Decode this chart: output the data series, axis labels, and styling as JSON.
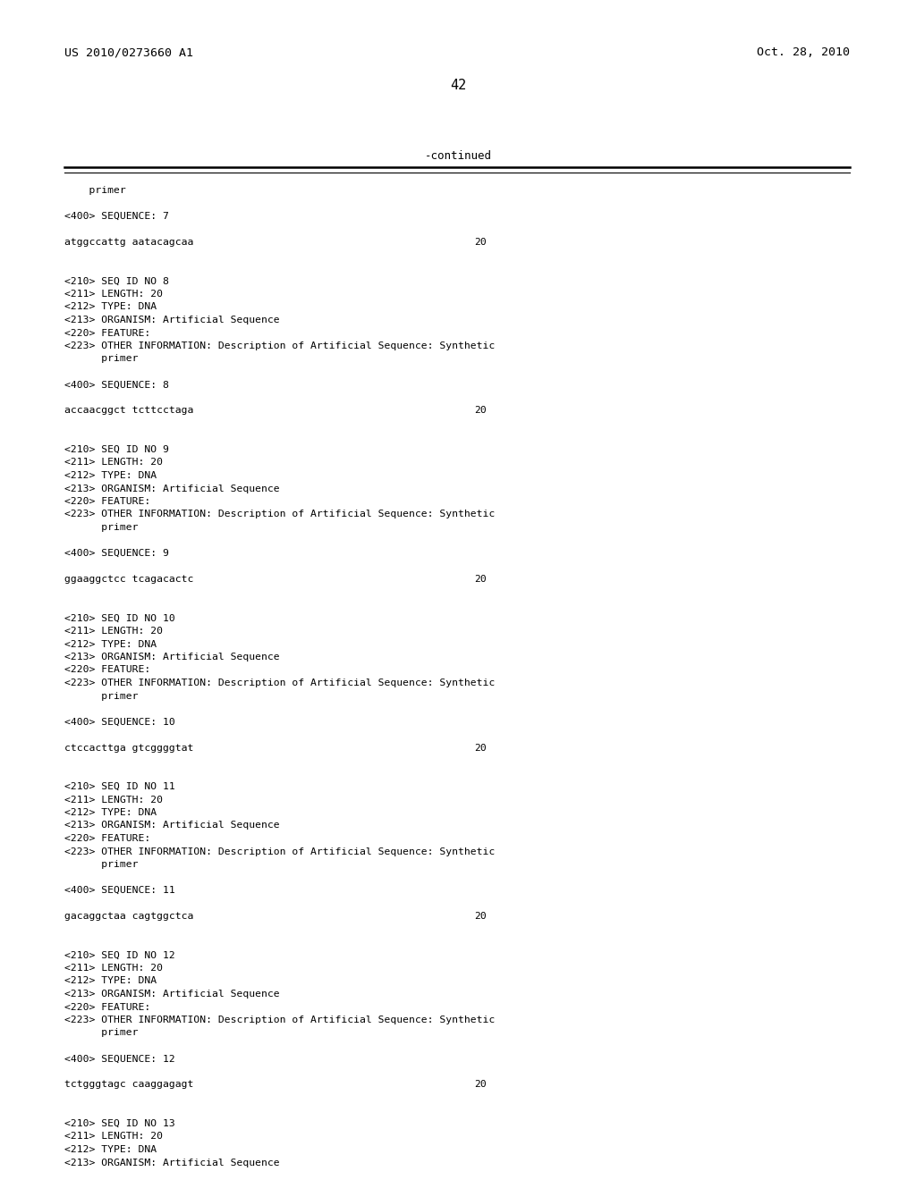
{
  "background_color": "#ffffff",
  "header_left": "US 2010/0273660 A1",
  "header_right": "Oct. 28, 2010",
  "page_number": "42",
  "continued_label": "-continued",
  "content_lines": [
    {
      "text": "    primer",
      "style": "mono"
    },
    {
      "text": "",
      "style": "mono"
    },
    {
      "text": "<400> SEQUENCE: 7",
      "style": "mono"
    },
    {
      "text": "",
      "style": "mono"
    },
    {
      "text": "atggccattg aatacagcaa",
      "style": "mono",
      "right_text": "20"
    },
    {
      "text": "",
      "style": "mono"
    },
    {
      "text": "",
      "style": "mono"
    },
    {
      "text": "<210> SEQ ID NO 8",
      "style": "mono"
    },
    {
      "text": "<211> LENGTH: 20",
      "style": "mono"
    },
    {
      "text": "<212> TYPE: DNA",
      "style": "mono"
    },
    {
      "text": "<213> ORGANISM: Artificial Sequence",
      "style": "mono"
    },
    {
      "text": "<220> FEATURE:",
      "style": "mono"
    },
    {
      "text": "<223> OTHER INFORMATION: Description of Artificial Sequence: Synthetic",
      "style": "mono"
    },
    {
      "text": "      primer",
      "style": "mono"
    },
    {
      "text": "",
      "style": "mono"
    },
    {
      "text": "<400> SEQUENCE: 8",
      "style": "mono"
    },
    {
      "text": "",
      "style": "mono"
    },
    {
      "text": "accaacggct tcttcctaga",
      "style": "mono",
      "right_text": "20"
    },
    {
      "text": "",
      "style": "mono"
    },
    {
      "text": "",
      "style": "mono"
    },
    {
      "text": "<210> SEQ ID NO 9",
      "style": "mono"
    },
    {
      "text": "<211> LENGTH: 20",
      "style": "mono"
    },
    {
      "text": "<212> TYPE: DNA",
      "style": "mono"
    },
    {
      "text": "<213> ORGANISM: Artificial Sequence",
      "style": "mono"
    },
    {
      "text": "<220> FEATURE:",
      "style": "mono"
    },
    {
      "text": "<223> OTHER INFORMATION: Description of Artificial Sequence: Synthetic",
      "style": "mono"
    },
    {
      "text": "      primer",
      "style": "mono"
    },
    {
      "text": "",
      "style": "mono"
    },
    {
      "text": "<400> SEQUENCE: 9",
      "style": "mono"
    },
    {
      "text": "",
      "style": "mono"
    },
    {
      "text": "ggaaggctcc tcagacactc",
      "style": "mono",
      "right_text": "20"
    },
    {
      "text": "",
      "style": "mono"
    },
    {
      "text": "",
      "style": "mono"
    },
    {
      "text": "<210> SEQ ID NO 10",
      "style": "mono"
    },
    {
      "text": "<211> LENGTH: 20",
      "style": "mono"
    },
    {
      "text": "<212> TYPE: DNA",
      "style": "mono"
    },
    {
      "text": "<213> ORGANISM: Artificial Sequence",
      "style": "mono"
    },
    {
      "text": "<220> FEATURE:",
      "style": "mono"
    },
    {
      "text": "<223> OTHER INFORMATION: Description of Artificial Sequence: Synthetic",
      "style": "mono"
    },
    {
      "text": "      primer",
      "style": "mono"
    },
    {
      "text": "",
      "style": "mono"
    },
    {
      "text": "<400> SEQUENCE: 10",
      "style": "mono"
    },
    {
      "text": "",
      "style": "mono"
    },
    {
      "text": "ctccacttga gtcggggtat",
      "style": "mono",
      "right_text": "20"
    },
    {
      "text": "",
      "style": "mono"
    },
    {
      "text": "",
      "style": "mono"
    },
    {
      "text": "<210> SEQ ID NO 11",
      "style": "mono"
    },
    {
      "text": "<211> LENGTH: 20",
      "style": "mono"
    },
    {
      "text": "<212> TYPE: DNA",
      "style": "mono"
    },
    {
      "text": "<213> ORGANISM: Artificial Sequence",
      "style": "mono"
    },
    {
      "text": "<220> FEATURE:",
      "style": "mono"
    },
    {
      "text": "<223> OTHER INFORMATION: Description of Artificial Sequence: Synthetic",
      "style": "mono"
    },
    {
      "text": "      primer",
      "style": "mono"
    },
    {
      "text": "",
      "style": "mono"
    },
    {
      "text": "<400> SEQUENCE: 11",
      "style": "mono"
    },
    {
      "text": "",
      "style": "mono"
    },
    {
      "text": "gacaggctaa cagtggctca",
      "style": "mono",
      "right_text": "20"
    },
    {
      "text": "",
      "style": "mono"
    },
    {
      "text": "",
      "style": "mono"
    },
    {
      "text": "<210> SEQ ID NO 12",
      "style": "mono"
    },
    {
      "text": "<211> LENGTH: 20",
      "style": "mono"
    },
    {
      "text": "<212> TYPE: DNA",
      "style": "mono"
    },
    {
      "text": "<213> ORGANISM: Artificial Sequence",
      "style": "mono"
    },
    {
      "text": "<220> FEATURE:",
      "style": "mono"
    },
    {
      "text": "<223> OTHER INFORMATION: Description of Artificial Sequence: Synthetic",
      "style": "mono"
    },
    {
      "text": "      primer",
      "style": "mono"
    },
    {
      "text": "",
      "style": "mono"
    },
    {
      "text": "<400> SEQUENCE: 12",
      "style": "mono"
    },
    {
      "text": "",
      "style": "mono"
    },
    {
      "text": "tctgggtagc caaggagagt",
      "style": "mono",
      "right_text": "20"
    },
    {
      "text": "",
      "style": "mono"
    },
    {
      "text": "",
      "style": "mono"
    },
    {
      "text": "<210> SEQ ID NO 13",
      "style": "mono"
    },
    {
      "text": "<211> LENGTH: 20",
      "style": "mono"
    },
    {
      "text": "<212> TYPE: DNA",
      "style": "mono"
    },
    {
      "text": "<213> ORGANISM: Artificial Sequence",
      "style": "mono"
    }
  ]
}
